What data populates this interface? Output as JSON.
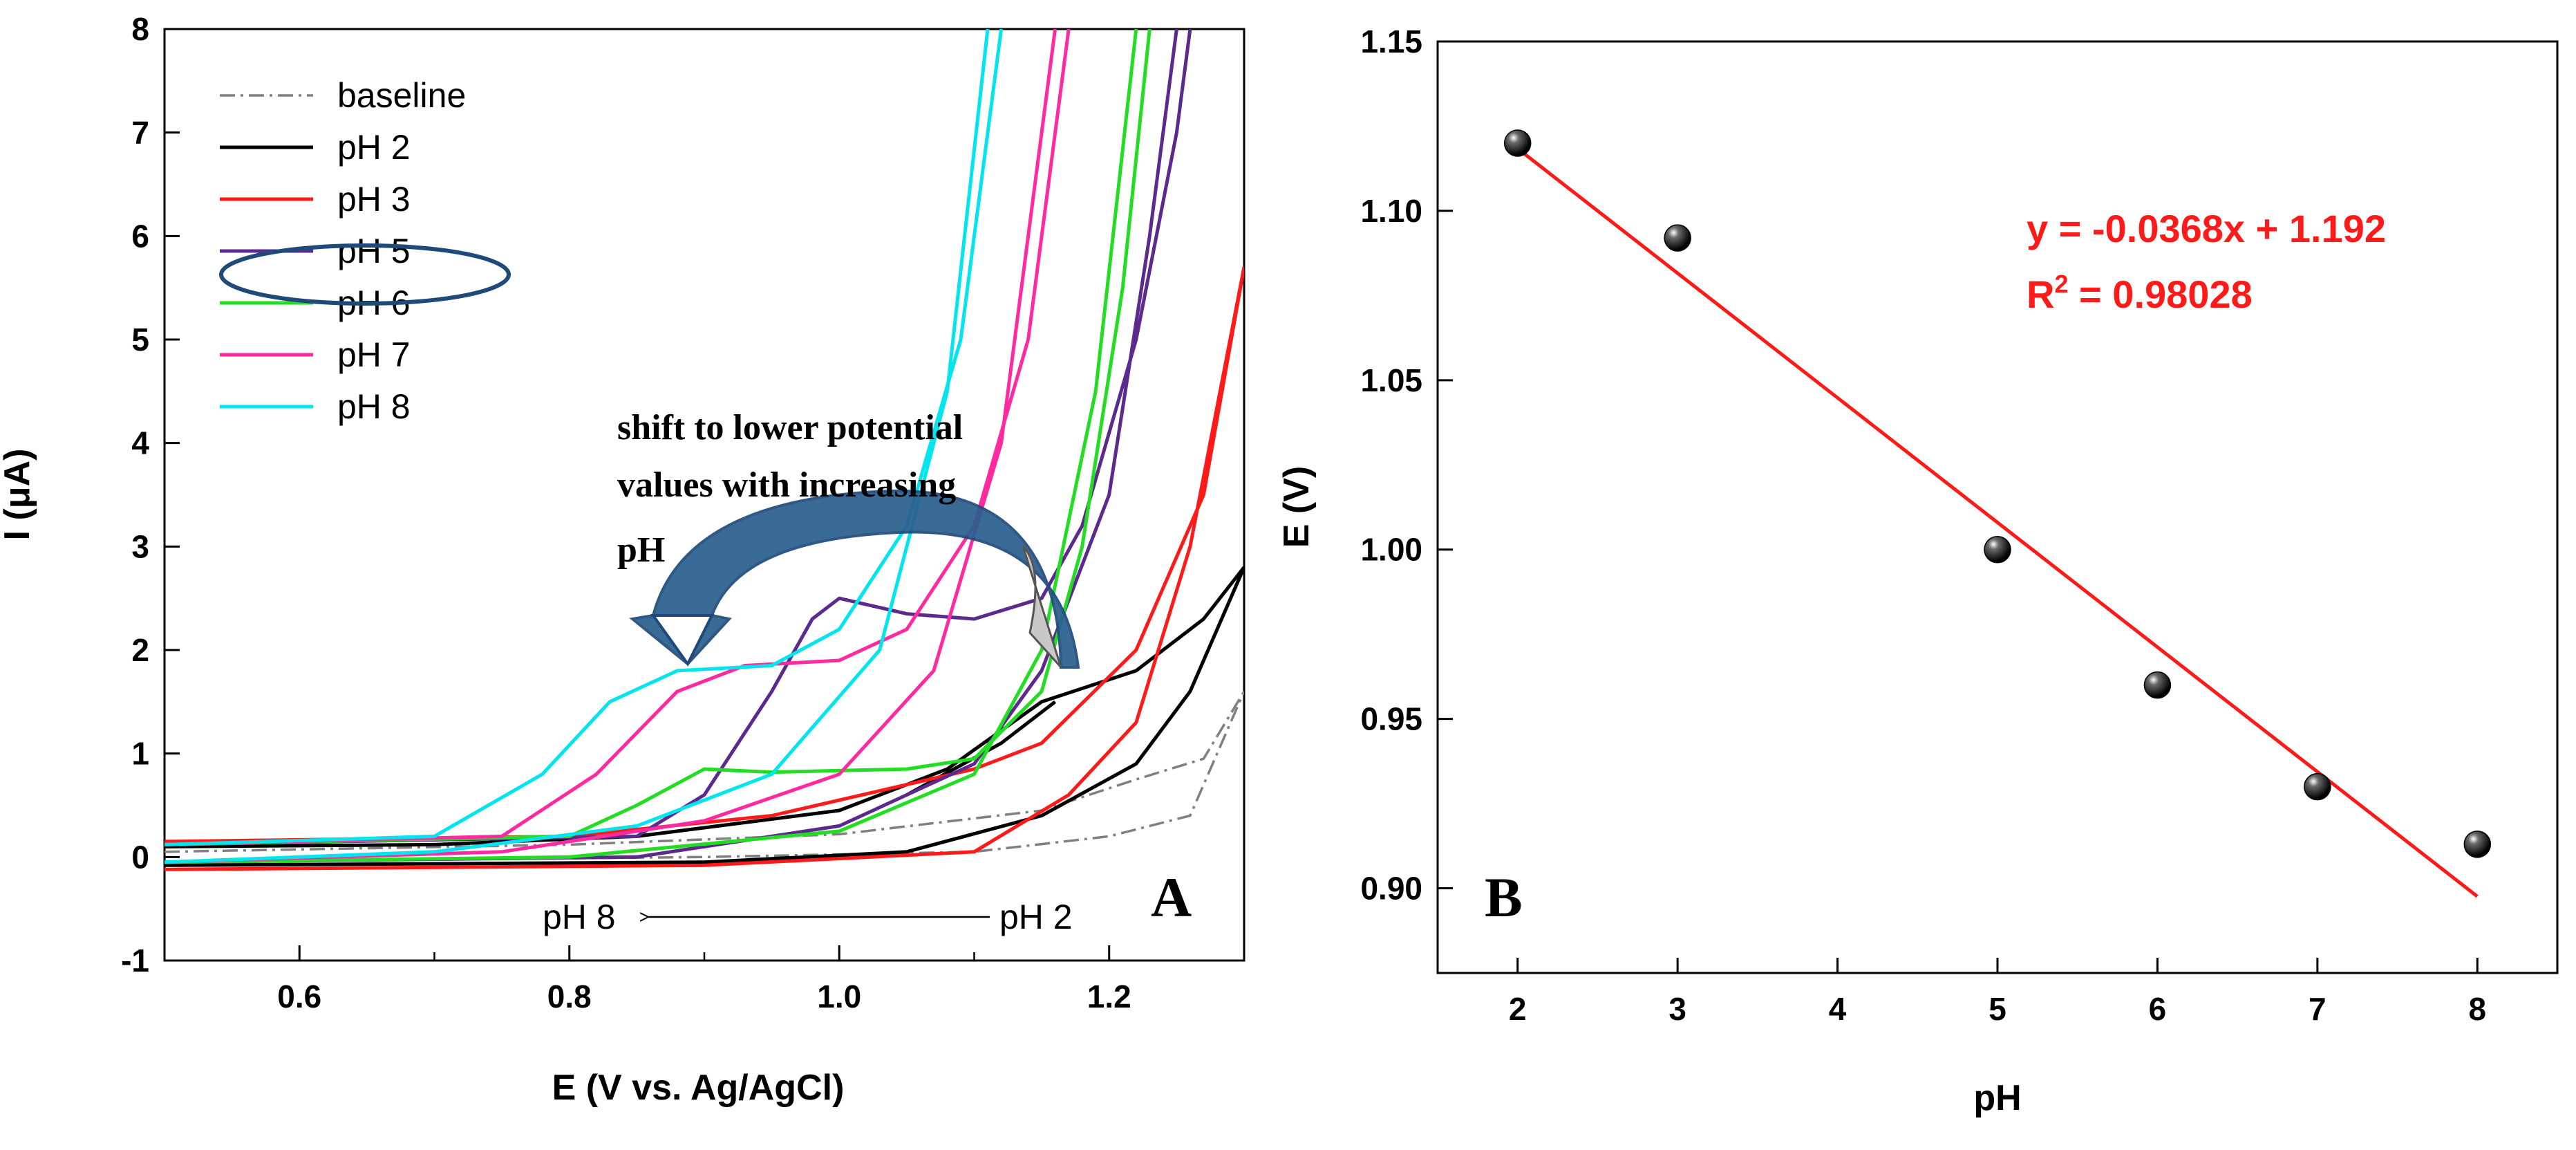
{
  "chart_data": [
    {
      "panel": "A",
      "type": "line",
      "title": "",
      "panel_label": "A",
      "xlabel": "E (V vs. Ag/AgCl)",
      "ylabel": "I (μA)",
      "xlim": [
        0.5,
        1.3
      ],
      "ylim": [
        -1,
        8
      ],
      "x_ticks": [
        "0.6",
        "0.8",
        "1.0",
        "1.2"
      ],
      "y_ticks": [
        "-1",
        "0",
        "1",
        "2",
        "3",
        "4",
        "5",
        "6",
        "7",
        "8"
      ],
      "legend": [
        {
          "label": "baseline",
          "color": "#808080",
          "dash": "dashdot"
        },
        {
          "label": "pH 2",
          "color": "#000000"
        },
        {
          "label": "pH 3",
          "color": "#ff1a1a"
        },
        {
          "label": "pH 5",
          "color": "#5b2a8c",
          "highlighted": true
        },
        {
          "label": "pH 6",
          "color": "#22dd22"
        },
        {
          "label": "pH 7",
          "color": "#ff2aa0"
        },
        {
          "label": "pH 8",
          "color": "#00e5ee"
        }
      ],
      "series": [
        {
          "name": "baseline",
          "color": "#808080",
          "dash": "dashdot",
          "loops": [
            [
              [
                0.5,
                0.05
              ],
              [
                0.8,
                0.12
              ],
              [
                1.0,
                0.22
              ],
              [
                1.15,
                0.45
              ],
              [
                1.22,
                0.75
              ],
              [
                1.27,
                0.95
              ],
              [
                1.3,
                1.6
              ]
            ],
            [
              [
                0.5,
                -0.05
              ],
              [
                0.9,
                0.0
              ],
              [
                1.1,
                0.05
              ],
              [
                1.2,
                0.2
              ],
              [
                1.26,
                0.4
              ],
              [
                1.3,
                1.6
              ]
            ]
          ]
        },
        {
          "name": "pH 2",
          "color": "#000000",
          "loops": [
            [
              [
                0.5,
                0.1
              ],
              [
                0.7,
                0.12
              ],
              [
                0.85,
                0.2
              ],
              [
                1.0,
                0.45
              ],
              [
                1.08,
                0.85
              ],
              [
                1.15,
                1.5
              ],
              [
                1.22,
                1.8
              ],
              [
                1.27,
                2.3
              ],
              [
                1.3,
                2.8
              ]
            ],
            [
              [
                0.5,
                -0.08
              ],
              [
                0.9,
                -0.05
              ],
              [
                1.05,
                0.05
              ],
              [
                1.15,
                0.4
              ],
              [
                1.22,
                0.9
              ],
              [
                1.26,
                1.6
              ],
              [
                1.3,
                2.8
              ]
            ],
            [
              [
                1.05,
                0.6
              ],
              [
                1.12,
                1.1
              ],
              [
                1.16,
                1.5
              ]
            ]
          ]
        },
        {
          "name": "pH 3",
          "color": "#ff1a1a",
          "loops": [
            [
              [
                0.5,
                0.15
              ],
              [
                0.8,
                0.2
              ],
              [
                0.95,
                0.4
              ],
              [
                1.05,
                0.7
              ],
              [
                1.1,
                0.85
              ],
              [
                1.15,
                1.1
              ],
              [
                1.22,
                2.0
              ],
              [
                1.27,
                3.5
              ],
              [
                1.3,
                5.7
              ]
            ],
            [
              [
                0.5,
                -0.12
              ],
              [
                0.9,
                -0.08
              ],
              [
                1.1,
                0.05
              ],
              [
                1.17,
                0.6
              ],
              [
                1.22,
                1.3
              ],
              [
                1.26,
                3.0
              ],
              [
                1.3,
                5.7
              ]
            ]
          ]
        },
        {
          "name": "pH 5",
          "color": "#5b2a8c",
          "loops": [
            [
              [
                0.5,
                0.12
              ],
              [
                0.85,
                0.2
              ],
              [
                0.9,
                0.6
              ],
              [
                0.95,
                1.6
              ],
              [
                0.98,
                2.3
              ],
              [
                1.0,
                2.5
              ],
              [
                1.05,
                2.35
              ],
              [
                1.1,
                2.3
              ],
              [
                1.15,
                2.5
              ],
              [
                1.18,
                3.2
              ],
              [
                1.22,
                5.0
              ],
              [
                1.25,
                7.0
              ],
              [
                1.26,
                8.0
              ]
            ],
            [
              [
                0.5,
                -0.05
              ],
              [
                0.85,
                0.0
              ],
              [
                1.0,
                0.3
              ],
              [
                1.1,
                0.9
              ],
              [
                1.15,
                1.8
              ],
              [
                1.2,
                3.5
              ],
              [
                1.23,
                6.0
              ],
              [
                1.25,
                8.0
              ]
            ]
          ]
        },
        {
          "name": "pH 6",
          "color": "#22dd22",
          "loops": [
            [
              [
                0.5,
                0.12
              ],
              [
                0.8,
                0.2
              ],
              [
                0.85,
                0.5
              ],
              [
                0.9,
                0.85
              ],
              [
                0.95,
                0.82
              ],
              [
                1.05,
                0.85
              ],
              [
                1.1,
                0.95
              ],
              [
                1.15,
                1.6
              ],
              [
                1.18,
                3.0
              ],
              [
                1.21,
                5.5
              ],
              [
                1.23,
                8.0
              ]
            ],
            [
              [
                0.5,
                -0.05
              ],
              [
                0.8,
                0.0
              ],
              [
                1.0,
                0.25
              ],
              [
                1.1,
                0.8
              ],
              [
                1.15,
                2.0
              ],
              [
                1.19,
                4.5
              ],
              [
                1.22,
                8.0
              ]
            ]
          ]
        },
        {
          "name": "pH 7",
          "color": "#ff2aa0",
          "loops": [
            [
              [
                0.5,
                0.12
              ],
              [
                0.75,
                0.2
              ],
              [
                0.82,
                0.8
              ],
              [
                0.88,
                1.6
              ],
              [
                0.93,
                1.85
              ],
              [
                1.0,
                1.9
              ],
              [
                1.05,
                2.2
              ],
              [
                1.1,
                3.2
              ],
              [
                1.14,
                5.0
              ],
              [
                1.17,
                8.0
              ]
            ],
            [
              [
                0.5,
                -0.05
              ],
              [
                0.75,
                0.05
              ],
              [
                0.9,
                0.35
              ],
              [
                1.0,
                0.8
              ],
              [
                1.07,
                1.8
              ],
              [
                1.12,
                4.0
              ],
              [
                1.16,
                8.0
              ]
            ]
          ]
        },
        {
          "name": "pH 8",
          "color": "#00e5ee",
          "loops": [
            [
              [
                0.5,
                0.12
              ],
              [
                0.7,
                0.2
              ],
              [
                0.78,
                0.8
              ],
              [
                0.83,
                1.5
              ],
              [
                0.88,
                1.8
              ],
              [
                0.95,
                1.85
              ],
              [
                1.0,
                2.2
              ],
              [
                1.05,
                3.2
              ],
              [
                1.09,
                5.0
              ],
              [
                1.12,
                8.0
              ]
            ],
            [
              [
                0.5,
                -0.05
              ],
              [
                0.7,
                0.05
              ],
              [
                0.85,
                0.3
              ],
              [
                0.95,
                0.8
              ],
              [
                1.03,
                2.0
              ],
              [
                1.08,
                4.5
              ],
              [
                1.11,
                8.0
              ]
            ]
          ]
        }
      ],
      "annotations": {
        "shift_text_lines": [
          "shift to lower potential",
          "values with increasing",
          "pH"
        ],
        "ph_from": "pH 2",
        "ph_to": "pH 8"
      }
    },
    {
      "panel": "B",
      "type": "scatter",
      "title": "",
      "panel_label": "B",
      "xlabel": "pH",
      "ylabel": "E (V)",
      "xlim": [
        1.5,
        8.5
      ],
      "ylim": [
        0.875,
        1.15
      ],
      "x_ticks": [
        "2",
        "3",
        "4",
        "5",
        "6",
        "7",
        "8"
      ],
      "y_ticks": [
        "0.90",
        "0.95",
        "1.00",
        "1.05",
        "1.10",
        "1.15"
      ],
      "points": [
        {
          "x": 2,
          "y": 1.12
        },
        {
          "x": 3,
          "y": 1.092
        },
        {
          "x": 5,
          "y": 1.0
        },
        {
          "x": 6,
          "y": 0.96
        },
        {
          "x": 7,
          "y": 0.93
        },
        {
          "x": 8,
          "y": 0.913
        }
      ],
      "fit": {
        "slope": -0.0368,
        "intercept": 1.192,
        "x_range": [
          2,
          8
        ],
        "color": "#ff1a1a"
      },
      "equation_text": "y = -0.0368x + 1.192",
      "r2_prefix": "R",
      "r2_sup": "2",
      "r2_value": " = 0.98028"
    }
  ]
}
